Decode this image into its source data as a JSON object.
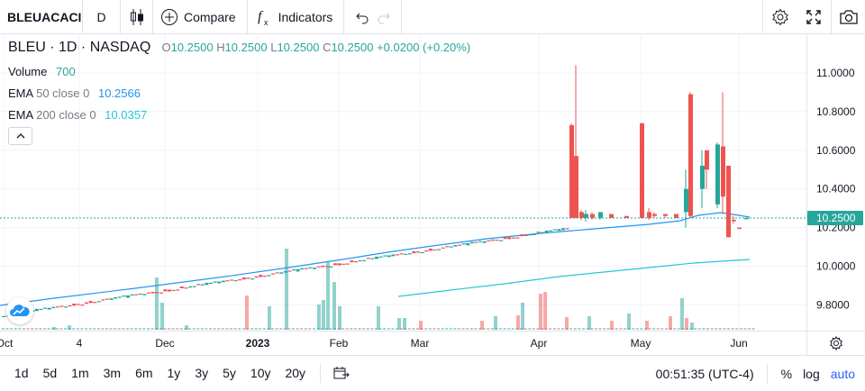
{
  "toolbar": {
    "symbol": "BLEUACACI",
    "interval": "D",
    "compare_label": "Compare",
    "indicators_label": "Indicators"
  },
  "legend": {
    "symbol": "BLEU",
    "interval": "1D",
    "exchange": "NASDAQ",
    "open_label": "O",
    "open": "10.2500",
    "high_label": "H",
    "high": "10.2500",
    "low_label": "L",
    "low": "10.2500",
    "close_label": "C",
    "close": "10.2500",
    "change": "+0.0200 (+0.20%)"
  },
  "studies": [
    {
      "name": "Volume",
      "params": "",
      "value": "700",
      "color": "#26a69a"
    },
    {
      "name": "EMA",
      "params": "50 close 0",
      "value": "10.2566",
      "color": "#2196f3"
    },
    {
      "name": "EMA",
      "params": "200 close 0",
      "value": "10.0357",
      "color": "#26c6da"
    }
  ],
  "price_axis": {
    "ticks": [
      "11.0000",
      "10.8000",
      "10.6000",
      "10.4000",
      "10.2000",
      "10.0000",
      "9.8000"
    ],
    "last_price": "10.2500"
  },
  "time_axis": {
    "ticks": [
      "Oct",
      "4",
      "Dec",
      "2023",
      "Feb",
      "Mar",
      "Apr",
      "May",
      "Jun"
    ]
  },
  "bottom_bar": {
    "ranges": [
      "1d",
      "5d",
      "1m",
      "3m",
      "6m",
      "1y",
      "3y",
      "5y",
      "10y",
      "20y"
    ],
    "clock": "00:51:35 (UTC-4)",
    "percent_label": "%",
    "log_label": "log",
    "auto_label": "auto"
  },
  "colors": {
    "up": "#26a69a",
    "down": "#ef5350",
    "ema50": "#2196f3",
    "ema200": "#26c6da",
    "accent": "#2962ff"
  },
  "icons": [
    "candles-icon",
    "plus-circle-icon",
    "fx-icon",
    "undo-icon",
    "redo-icon",
    "gear-icon",
    "fullscreen-icon",
    "camera-icon",
    "logo-icon",
    "date-range-icon",
    "axis-settings-icon",
    "chevron-up-icon"
  ]
}
